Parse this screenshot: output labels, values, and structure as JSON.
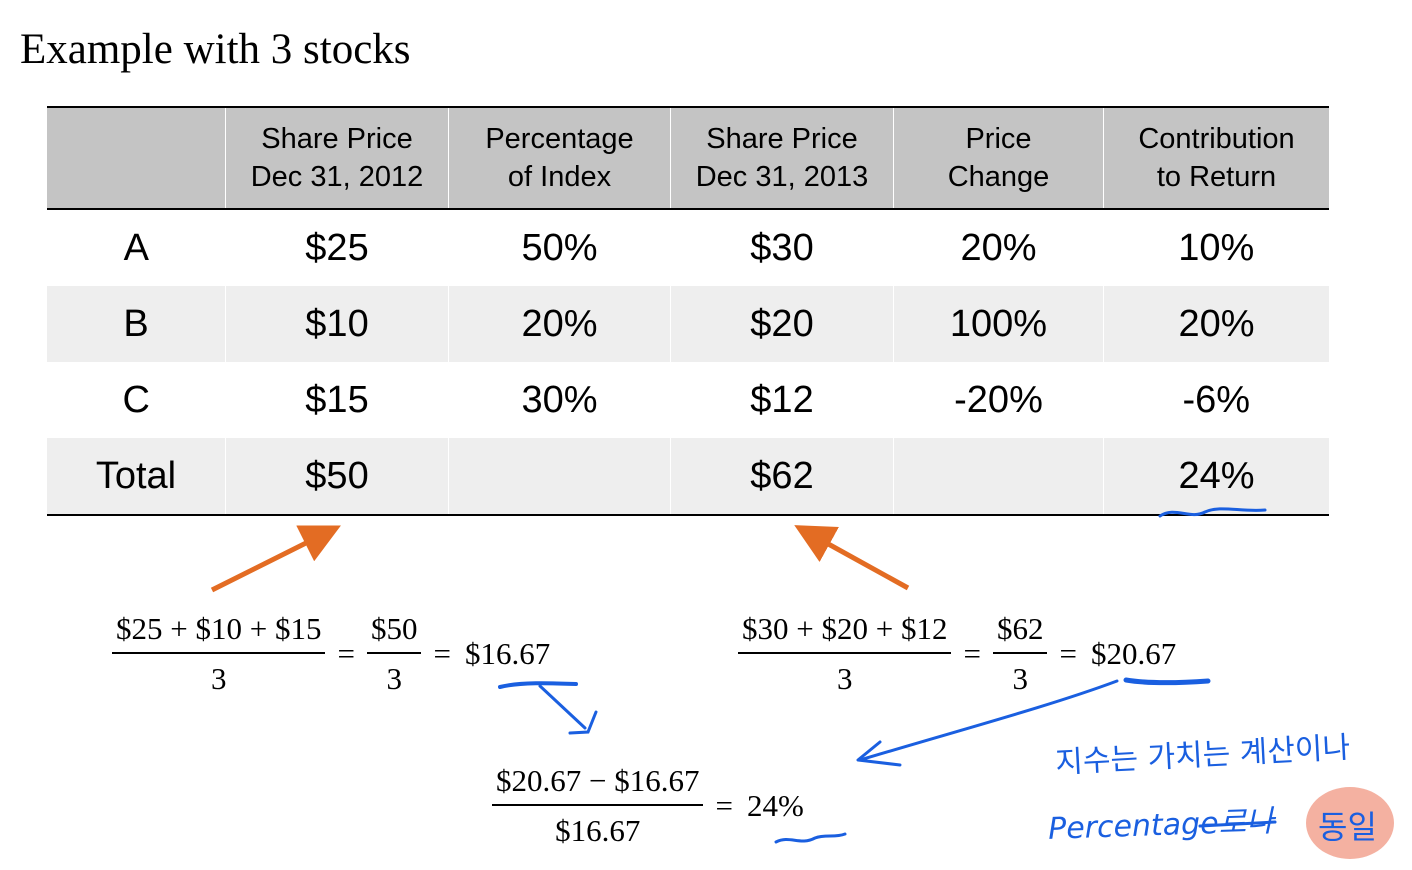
{
  "slide": {
    "title": "Example with 3 stocks"
  },
  "table": {
    "headers": [
      [
        ""
      ],
      [
        "Share Price",
        "Dec 31, 2012"
      ],
      [
        "Percentage",
        "of Index"
      ],
      [
        "Share Price",
        "Dec 31, 2013"
      ],
      [
        "Price",
        "Change"
      ],
      [
        "Contribution",
        "to Return"
      ]
    ],
    "rows": [
      [
        "A",
        "$25",
        "50%",
        "$30",
        "20%",
        "10%"
      ],
      [
        "B",
        "$10",
        "20%",
        "$20",
        "100%",
        "20%"
      ],
      [
        "C",
        "$15",
        "30%",
        "$12",
        "-20%",
        "-6%"
      ],
      [
        "Total",
        "$50",
        "",
        "$62",
        "",
        "24%"
      ]
    ]
  },
  "equations": {
    "left": {
      "num": "$25 + $10 + $15",
      "den": "3",
      "eq1": "=",
      "num2": "$50",
      "den2": "3",
      "eq2": "=",
      "result": "$16.67"
    },
    "right": {
      "num": "$30 + $20 + $12",
      "den": "3",
      "eq1": "=",
      "num2": "$62",
      "den2": "3",
      "eq2": "=",
      "result": "$20.67"
    },
    "bottom": {
      "num": "$20.67 − $16.67",
      "den": "$16.67",
      "eq": "=",
      "result": "24%"
    }
  },
  "annotations": {
    "note_line1": "지수는 가치는 계산이나",
    "note_line2": "Percentage로나",
    "note_badge": "동일",
    "arrow_color_orange": "#e36c23",
    "ink_color_blue": "#1a5fe0",
    "badge_color": "#f2a391"
  }
}
